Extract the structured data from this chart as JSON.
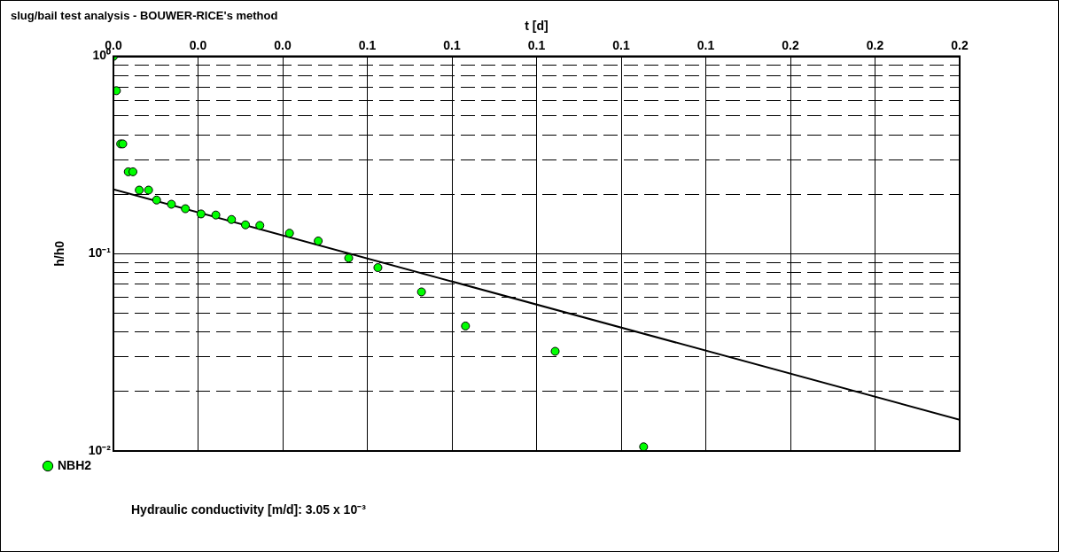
{
  "chart_data": {
    "type": "scatter",
    "title": "slug/bail test analysis - BOUWER-RICE's method",
    "xlabel": "t [d]",
    "ylabel": "h/h0",
    "xlim": [
      0,
      0.2
    ],
    "xticks": [
      {
        "value": 0,
        "label": "0.0"
      },
      {
        "value": 0.02,
        "label": "0.0"
      },
      {
        "value": 0.04,
        "label": "0.0"
      },
      {
        "value": 0.06,
        "label": "0.1"
      },
      {
        "value": 0.08,
        "label": "0.1"
      },
      {
        "value": 0.1,
        "label": "0.1"
      },
      {
        "value": 0.12,
        "label": "0.1"
      },
      {
        "value": 0.14,
        "label": "0.1"
      },
      {
        "value": 0.16,
        "label": "0.2"
      },
      {
        "value": 0.18,
        "label": "0.2"
      },
      {
        "value": 0.2,
        "label": "0.2"
      }
    ],
    "ylim": [
      0.01,
      1
    ],
    "yticks": [
      {
        "value": 0.01,
        "label": "10⁻²"
      },
      {
        "value": 0.02,
        "label": null
      },
      {
        "value": 0.03,
        "label": null
      },
      {
        "value": 0.04,
        "label": null
      },
      {
        "value": 0.05,
        "label": null
      },
      {
        "value": 0.06,
        "label": null
      },
      {
        "value": 0.07,
        "label": null
      },
      {
        "value": 0.08,
        "label": null
      },
      {
        "value": 0.09,
        "label": null
      },
      {
        "value": 0.1,
        "label": "10⁻¹"
      },
      {
        "value": 0.2,
        "label": null
      },
      {
        "value": 0.3,
        "label": null
      },
      {
        "value": 0.4,
        "label": null
      },
      {
        "value": 0.5,
        "label": null
      },
      {
        "value": 0.6,
        "label": null
      },
      {
        "value": 0.7,
        "label": null
      },
      {
        "value": 0.8,
        "label": null
      },
      {
        "value": 0.9,
        "label": null
      },
      {
        "value": 1,
        "label": "10⁰"
      }
    ],
    "log": "y",
    "grid": true,
    "legend": "bottom left",
    "marker": "circle",
    "series": [
      {
        "name": "NBH2",
        "color": "#00ff00",
        "x": [
          0,
          0.0007,
          0.0017,
          0.0022,
          0.0035,
          0.0046,
          0.0061,
          0.0083,
          0.0102,
          0.0137,
          0.017,
          0.0207,
          0.0242,
          0.0279,
          0.0312,
          0.0346,
          0.0416,
          0.0484,
          0.0556,
          0.0625,
          0.0728,
          0.0832,
          0.1044,
          0.1253
        ],
        "values": [
          1.0,
          0.67,
          0.36,
          0.36,
          0.26,
          0.26,
          0.21,
          0.21,
          0.187,
          0.178,
          0.169,
          0.159,
          0.157,
          0.149,
          0.14,
          0.139,
          0.127,
          0.116,
          0.095,
          0.085,
          0.064,
          0.043,
          0.032,
          0.0105
        ]
      },
      {
        "type": "line",
        "marker": "none",
        "color": "#000000",
        "x": [
          0,
          0.2
        ],
        "values": [
          0.212,
          0.0144
        ]
      }
    ],
    "annotations": [
      "Hydraulic conductivity [m/d]:  3.05 x 10⁻³"
    ]
  }
}
